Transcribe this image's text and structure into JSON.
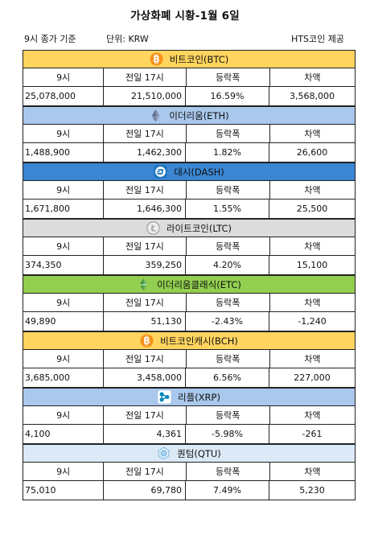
{
  "title": "가상화폐 시황-1월 6일",
  "meta": {
    "basis": "9시 종가 기준",
    "unit": "단위: KRW",
    "provider": "HTS코인 제공"
  },
  "columns": [
    "9시",
    "전일 17시",
    "등락폭",
    "차액"
  ],
  "coins": [
    {
      "name": "비트코인(BTC)",
      "icon": "bitcoin-icon",
      "header_color": "#ffd45f",
      "icon_color": "#f7931a",
      "values": [
        "25,078,000",
        "21,510,000",
        "16.59%",
        "3,568,000"
      ]
    },
    {
      "name": "이더리움(ETH)",
      "icon": "ethereum-icon",
      "header_color": "#a9c8ec",
      "icon_color": "#62688f",
      "values": [
        "1,488,900",
        "1,462,300",
        "1.82%",
        "26,600"
      ]
    },
    {
      "name": "대시(DASH)",
      "icon": "dash-icon",
      "header_color": "#3a86d3",
      "icon_color": "#1c75bc",
      "values": [
        "1,671,800",
        "1,646,300",
        "1.55%",
        "25,500"
      ]
    },
    {
      "name": "라이트코인(LTC)",
      "icon": "litecoin-icon",
      "header_color": "#dcdcdc",
      "icon_color": "#a8a8a8",
      "values": [
        "374,350",
        "359,250",
        "4.20%",
        "15,100"
      ]
    },
    {
      "name": "이더리움클래식(ETC)",
      "icon": "ethereum-classic-icon",
      "header_color": "#92cf50",
      "icon_color": "#3f8f3f",
      "values": [
        "49,890",
        "51,130",
        "-2.43%",
        "-1,240"
      ]
    },
    {
      "name": "비트코인캐시(BCH)",
      "icon": "bitcoin-cash-icon",
      "header_color": "#ffd45f",
      "icon_color": "#f7931a",
      "values": [
        "3,685,000",
        "3,458,000",
        "6.56%",
        "227,000"
      ]
    },
    {
      "name": "리플(XRP)",
      "icon": "ripple-icon",
      "header_color": "#a9c8ec",
      "icon_color": "#0085c0",
      "values": [
        "4,100",
        "4,361",
        "-5.98%",
        "-261"
      ]
    },
    {
      "name": "퀀텀(QTU)",
      "icon": "qtum-icon",
      "header_color": "#dce9f7",
      "icon_color": "#4aa6d9",
      "values": [
        "75,010",
        "69,780",
        "7.49%",
        "5,230"
      ]
    }
  ]
}
